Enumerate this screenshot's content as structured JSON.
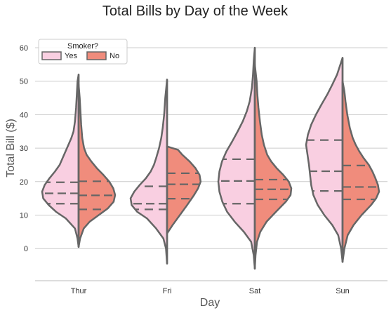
{
  "chart_data": {
    "type": "violin",
    "title": "Total Bills by Day of the Week",
    "xlabel": "Day",
    "ylabel": "Total Bill ($)",
    "ylim": [
      -10,
      65
    ],
    "yticks": [
      0,
      10,
      20,
      30,
      40,
      50,
      60
    ],
    "categories": [
      "Thur",
      "Fri",
      "Sat",
      "Sun"
    ],
    "grid": "horizontal",
    "split": true,
    "inner": "quartile",
    "legend": {
      "title": "Smoker?",
      "position": "top-left",
      "entries": [
        "Yes",
        "No"
      ]
    },
    "colors": {
      "Yes": "#f9cfe1",
      "No": "#f08c7c",
      "outline": "#666666",
      "grid": "#cccccc"
    },
    "series": [
      {
        "name": "Yes",
        "values": [
          {
            "day": "Thur",
            "min": 0.5,
            "max": 52,
            "quartiles": [
              13.4,
              16.5,
              19.8
            ],
            "density": [
              [
                0.5,
                0
              ],
              [
                3,
                0.03
              ],
              [
                6,
                0.1
              ],
              [
                9,
                0.35
              ],
              [
                11,
                0.62
              ],
              [
                13,
                0.82
              ],
              [
                15,
                0.97
              ],
              [
                17,
                1.0
              ],
              [
                19,
                0.93
              ],
              [
                21,
                0.8
              ],
              [
                23,
                0.65
              ],
              [
                25,
                0.52
              ],
              [
                27,
                0.44
              ],
              [
                29,
                0.36
              ],
              [
                31,
                0.28
              ],
              [
                33,
                0.2
              ],
              [
                35,
                0.14
              ],
              [
                38,
                0.1
              ],
              [
                42,
                0.07
              ],
              [
                46,
                0.05
              ],
              [
                50,
                0.03
              ],
              [
                52,
                0
              ]
            ]
          },
          {
            "day": "Fri",
            "min": -4.5,
            "max": 50.5,
            "quartiles": [
              11.7,
              13.4,
              18.6
            ],
            "density": [
              [
                -4.5,
                0
              ],
              [
                0,
                0.03
              ],
              [
                3,
                0.1
              ],
              [
                6,
                0.3
              ],
              [
                9,
                0.55
              ],
              [
                11,
                0.82
              ],
              [
                13,
                0.97
              ],
              [
                15,
                1.0
              ],
              [
                17,
                0.9
              ],
              [
                19,
                0.75
              ],
              [
                21,
                0.58
              ],
              [
                23,
                0.45
              ],
              [
                25,
                0.36
              ],
              [
                27,
                0.3
              ],
              [
                30,
                0.22
              ],
              [
                33,
                0.16
              ],
              [
                36,
                0.12
              ],
              [
                40,
                0.08
              ],
              [
                45,
                0.05
              ],
              [
                50.5,
                0
              ]
            ]
          },
          {
            "day": "Sat",
            "min": -6,
            "max": 60,
            "quartiles": [
              13.4,
              20.2,
              26.7
            ],
            "density": [
              [
                -6,
                0
              ],
              [
                -2,
                0.03
              ],
              [
                2,
                0.1
              ],
              [
                5,
                0.3
              ],
              [
                8,
                0.55
              ],
              [
                11,
                0.76
              ],
              [
                14,
                0.89
              ],
              [
                17,
                0.97
              ],
              [
                20,
                1.0
              ],
              [
                23,
                0.97
              ],
              [
                26,
                0.9
              ],
              [
                29,
                0.78
              ],
              [
                32,
                0.62
              ],
              [
                35,
                0.47
              ],
              [
                38,
                0.33
              ],
              [
                41,
                0.22
              ],
              [
                44,
                0.14
              ],
              [
                48,
                0.08
              ],
              [
                52,
                0.05
              ],
              [
                56,
                0.03
              ],
              [
                60,
                0
              ]
            ]
          },
          {
            "day": "Sun",
            "min": -4,
            "max": 57,
            "quartiles": [
              17.2,
              23.1,
              32.4
            ],
            "density": [
              [
                -4,
                0
              ],
              [
                0,
                0.04
              ],
              [
                4,
                0.12
              ],
              [
                7,
                0.28
              ],
              [
                10,
                0.5
              ],
              [
                13,
                0.68
              ],
              [
                16,
                0.8
              ],
              [
                19,
                0.86
              ],
              [
                22,
                0.89
              ],
              [
                25,
                0.92
              ],
              [
                28,
                0.96
              ],
              [
                31,
                1.0
              ],
              [
                34,
                0.95
              ],
              [
                37,
                0.86
              ],
              [
                40,
                0.73
              ],
              [
                43,
                0.58
              ],
              [
                46,
                0.42
              ],
              [
                49,
                0.28
              ],
              [
                52,
                0.15
              ],
              [
                55,
                0.06
              ],
              [
                57,
                0
              ]
            ]
          }
        ]
      },
      {
        "name": "No",
        "values": [
          {
            "day": "Thur",
            "min": 0.5,
            "max": 49,
            "quartiles": [
              11.7,
              15.9,
              20.1
            ],
            "density": [
              [
                0.5,
                0
              ],
              [
                3,
                0.04
              ],
              [
                6,
                0.14
              ],
              [
                8,
                0.3
              ],
              [
                10,
                0.55
              ],
              [
                12,
                0.8
              ],
              [
                14,
                0.96
              ],
              [
                16,
                1.0
              ],
              [
                18,
                0.95
              ],
              [
                20,
                0.84
              ],
              [
                22,
                0.68
              ],
              [
                24,
                0.5
              ],
              [
                26,
                0.35
              ],
              [
                28,
                0.22
              ],
              [
                30,
                0.15
              ],
              [
                33,
                0.1
              ],
              [
                37,
                0.07
              ],
              [
                41,
                0.05
              ],
              [
                45,
                0.03
              ],
              [
                49,
                0
              ]
            ]
          },
          {
            "day": "Fri",
            "min": 4.5,
            "max": 30.5,
            "quartiles": [
              14.9,
              19.2,
              22.5
            ],
            "density": [
              [
                4.5,
                0
              ],
              [
                7,
                0.15
              ],
              [
                10,
                0.35
              ],
              [
                13,
                0.55
              ],
              [
                16,
                0.74
              ],
              [
                18,
                0.85
              ],
              [
                20,
                0.92
              ],
              [
                22,
                0.89
              ],
              [
                24,
                0.78
              ],
              [
                26,
                0.62
              ],
              [
                28,
                0.42
              ],
              [
                29.5,
                0.3
              ],
              [
                30.5,
                0
              ]
            ]
          },
          {
            "day": "Sat",
            "min": -6,
            "max": 55,
            "quartiles": [
              14.7,
              17.7,
              20.6
            ],
            "density": [
              [
                -6,
                0
              ],
              [
                -2,
                0.02
              ],
              [
                2,
                0.06
              ],
              [
                5,
                0.15
              ],
              [
                8,
                0.32
              ],
              [
                11,
                0.58
              ],
              [
                14,
                0.85
              ],
              [
                16,
                0.98
              ],
              [
                18,
                1.0
              ],
              [
                20,
                0.93
              ],
              [
                22,
                0.78
              ],
              [
                24,
                0.6
              ],
              [
                26,
                0.45
              ],
              [
                28,
                0.34
              ],
              [
                31,
                0.25
              ],
              [
                34,
                0.19
              ],
              [
                38,
                0.14
              ],
              [
                42,
                0.1
              ],
              [
                46,
                0.07
              ],
              [
                50,
                0.05
              ],
              [
                55,
                0
              ]
            ]
          },
          {
            "day": "Sun",
            "min": -4,
            "max": 50,
            "quartiles": [
              14.7,
              18.4,
              24.8
            ],
            "density": [
              [
                -4,
                0
              ],
              [
                0,
                0.05
              ],
              [
                4,
                0.14
              ],
              [
                7,
                0.3
              ],
              [
                10,
                0.52
              ],
              [
                13,
                0.78
              ],
              [
                15,
                0.92
              ],
              [
                17,
                1.0
              ],
              [
                19,
                0.97
              ],
              [
                21,
                0.9
              ],
              [
                23,
                0.82
              ],
              [
                25,
                0.72
              ],
              [
                27,
                0.58
              ],
              [
                29,
                0.46
              ],
              [
                31,
                0.36
              ],
              [
                33,
                0.28
              ],
              [
                36,
                0.2
              ],
              [
                40,
                0.13
              ],
              [
                44,
                0.08
              ],
              [
                47,
                0.05
              ],
              [
                50,
                0
              ]
            ]
          }
        ]
      }
    ]
  }
}
